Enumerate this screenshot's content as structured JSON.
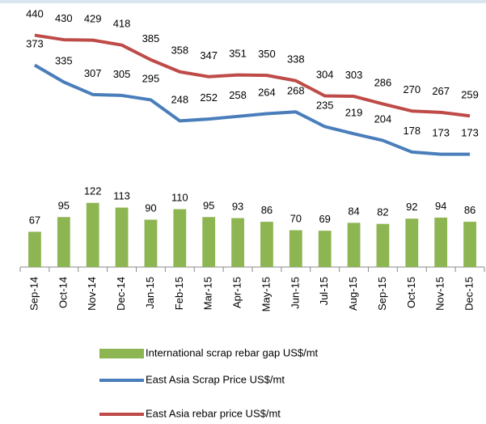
{
  "chart_data": {
    "type": "bar-line",
    "categories": [
      "Sep-14",
      "Oct-14",
      "Nov-14",
      "Dec-14",
      "Jan-15",
      "Feb-15",
      "Mar-15",
      "Apr-15",
      "May-15",
      "Jun-15",
      "Jul-15",
      "Aug-15",
      "Sep-15",
      "Oct-15",
      "Nov-15",
      "Dec-15"
    ],
    "series": [
      {
        "name": "International scrap rebar gap US$/mt",
        "type": "bar",
        "axis": "y2",
        "color": "#8db552",
        "values": [
          67,
          95,
          122,
          113,
          90,
          110,
          95,
          93,
          86,
          70,
          69,
          84,
          82,
          92,
          94,
          86
        ]
      },
      {
        "name": "East Asia Scrap Price US$/mt",
        "type": "line",
        "color": "#4a7ebb",
        "values": [
          373,
          335,
          307,
          305,
          295,
          248,
          252,
          258,
          264,
          268,
          235,
          219,
          204,
          178,
          173,
          173
        ]
      },
      {
        "name": "East Asia rebar price US$/mt",
        "type": "line",
        "color": "#be4b48",
        "values": [
          440,
          430,
          429,
          418,
          385,
          358,
          347,
          351,
          350,
          338,
          304,
          303,
          286,
          270,
          267,
          259
        ]
      }
    ],
    "ylim": [
      -80,
      510
    ],
    "y2lim": [
      0,
      500
    ],
    "legend": "bottom"
  }
}
